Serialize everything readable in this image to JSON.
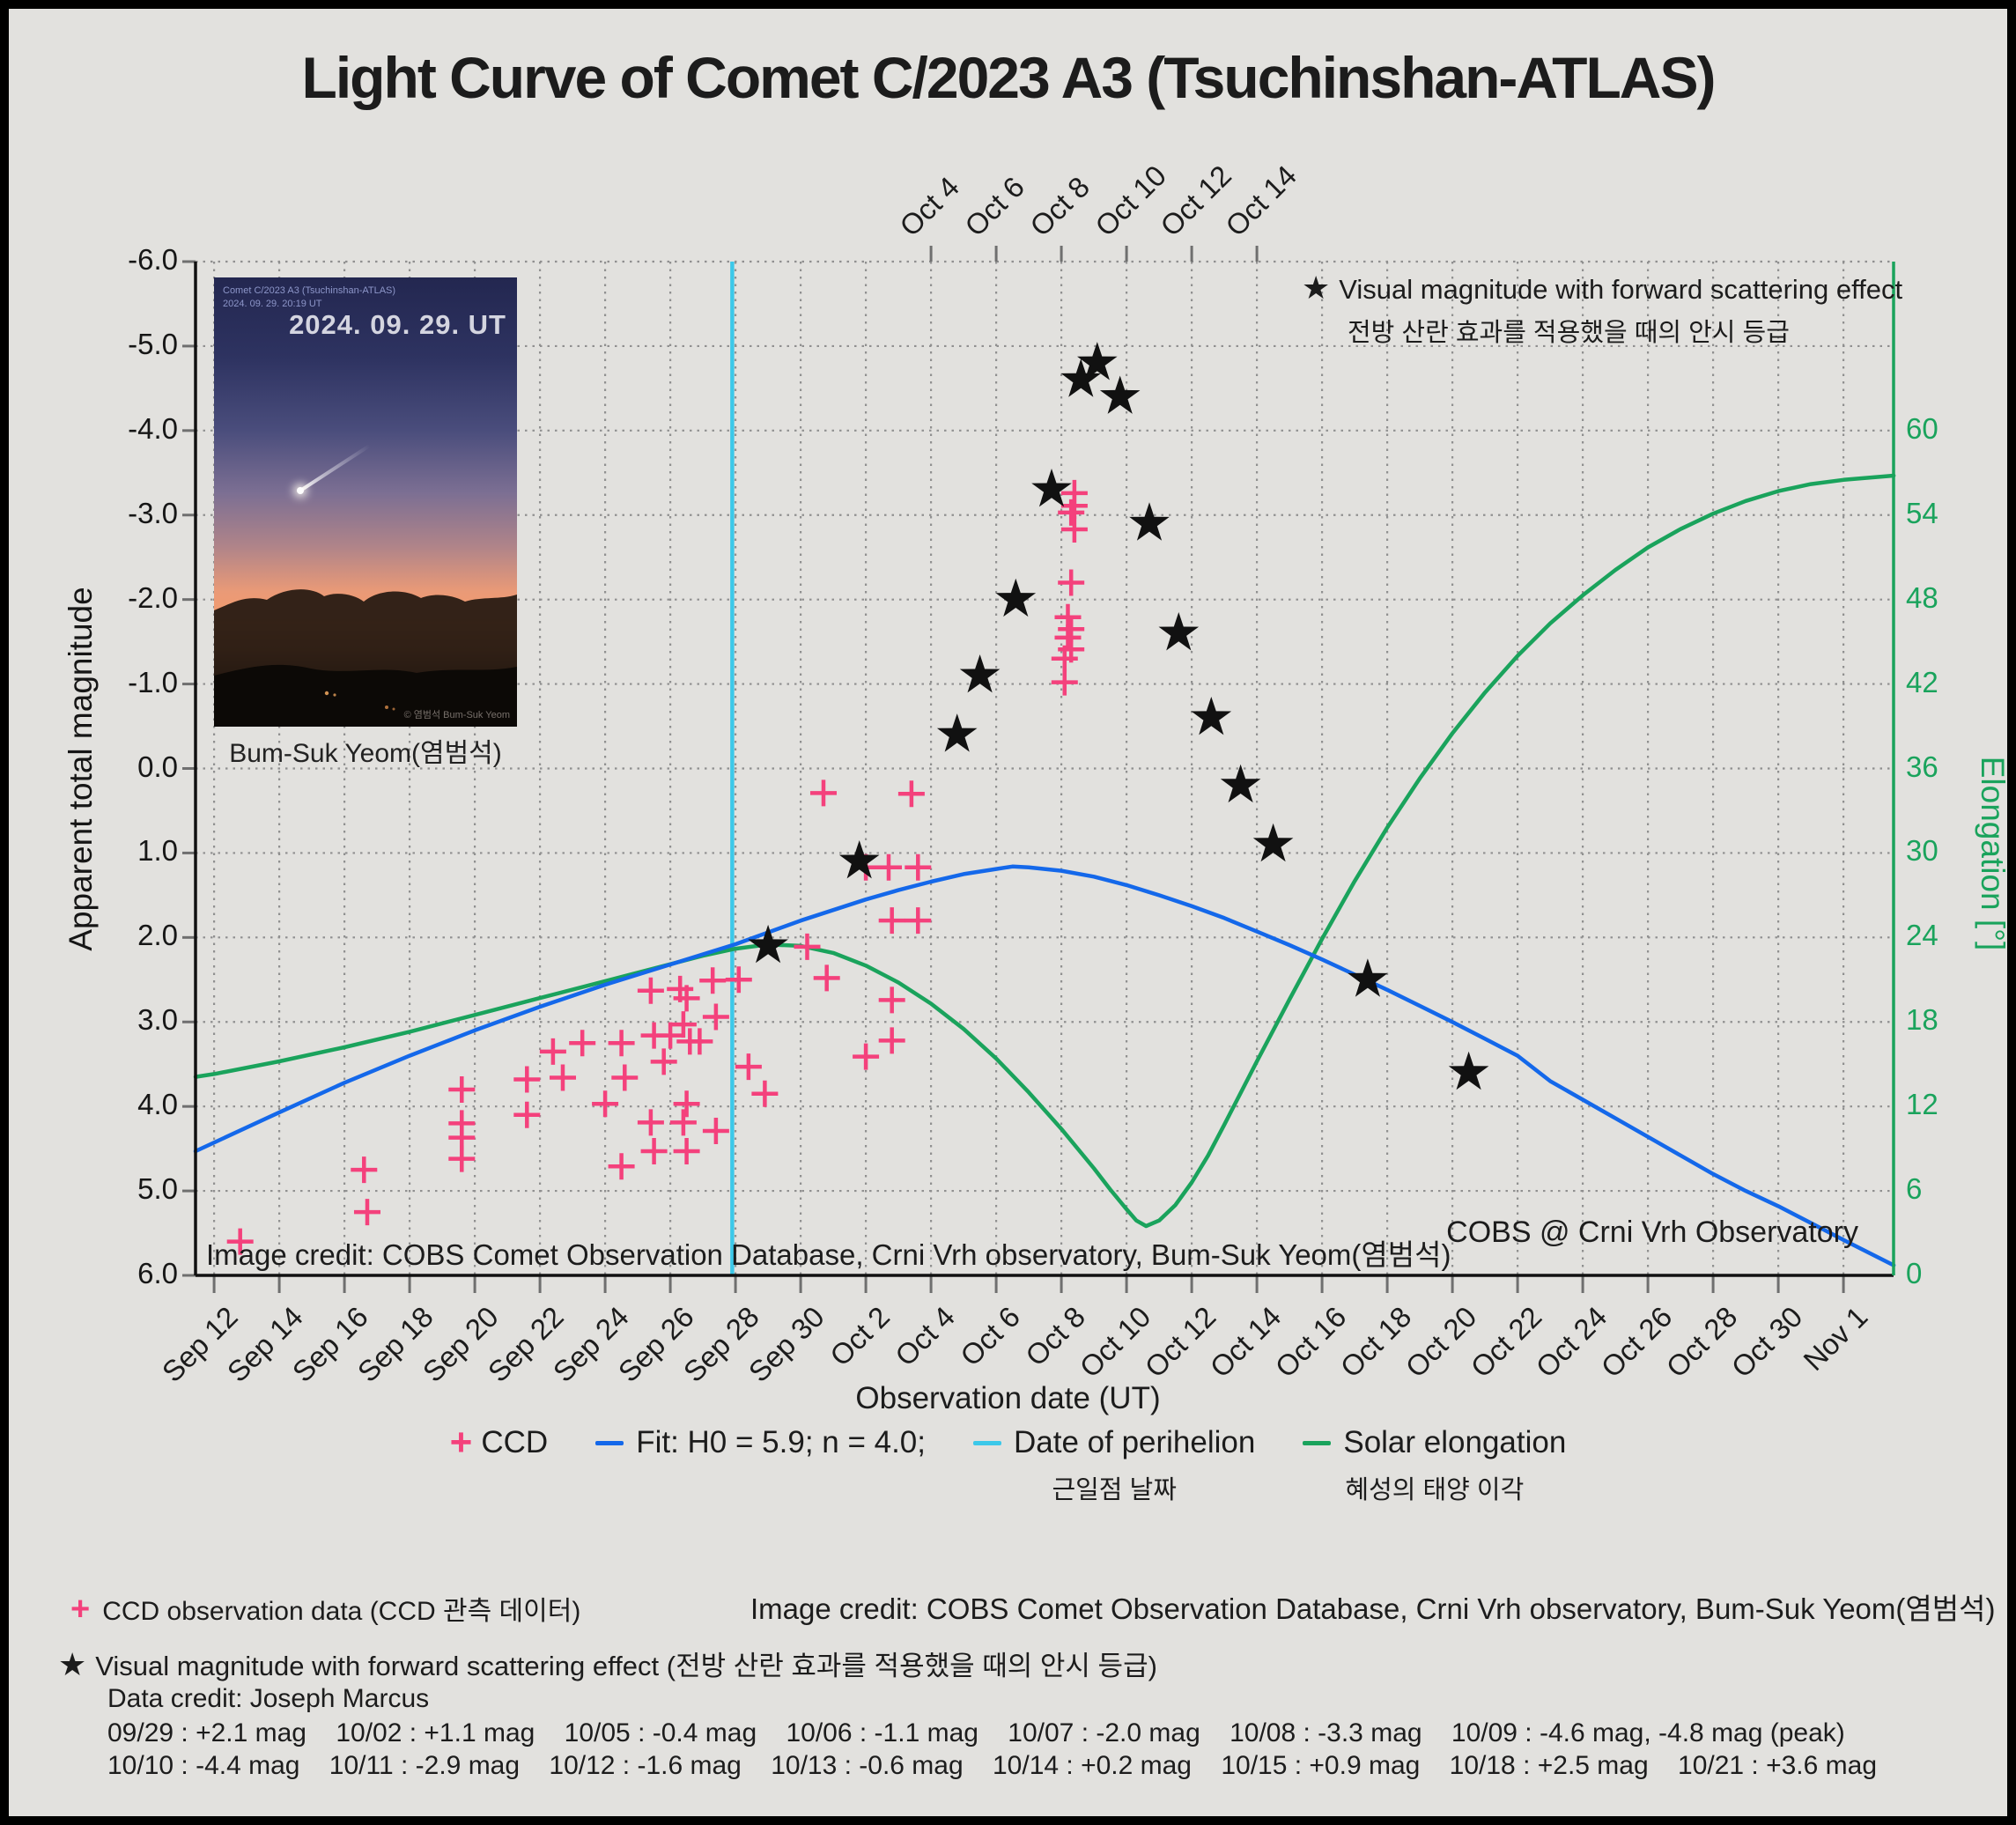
{
  "title": "Light Curve of Comet C/2023 A3 (Tsuchinshan-ATLAS)",
  "colors": {
    "background": "#e2e1de",
    "ccd_pink": "#F4417C",
    "fit_blue": "#1468EA",
    "perihelion_cyan": "#3CC8E9",
    "elongation_green": "#1AA35C",
    "grid_gray": "#909090",
    "star_black": "#111111"
  },
  "inset": {
    "photo_label_line1": "Comet C/2023 A3 (Tsuchinshan-ATLAS)",
    "photo_label_line2": "2024. 09. 29. 20:19 UT",
    "photo_big_date": "2024. 09. 29. UT",
    "photo_watermark": "© 염범석 Bum-Suk Yeom",
    "caption": "Bum-Suk Yeom(염범석)"
  },
  "plot": {
    "star_legend_line1": "Visual magnitude with forward scattering effect",
    "star_legend_line2": "전방 산란 효과를 적용했을 때의 안시 등급",
    "credit_left": "Image credit: COBS Comet Observation Database, Crni Vrh observatory, Bum-Suk Yeom(염범석)",
    "credit_right": "COBS @ Crni Vrh Observatory"
  },
  "legend": {
    "ccd": "CCD",
    "fit": "Fit: H0 = 5.9; n = 4.0;",
    "perihelion": "Date of perihelion",
    "perihelion_kr": "근일점 날짜",
    "elongation": "Solar elongation",
    "elongation_kr": "혜성의 태양 이각"
  },
  "footer": {
    "ccd_line": "CCD observation data (CCD 관측 데이터)",
    "image_credit": "Image credit: COBS Comet Observation Database, Crni Vrh observatory, Bum-Suk Yeom(염범석)",
    "star_line": "Visual magnitude with forward scattering effect (전방 산란 효과를 적용했을 때의 안시 등급)",
    "data_credit": "Data credit: Joseph Marcus",
    "mag_line1": "09/29 : +2.1 mag    10/02 : +1.1 mag    10/05 : -0.4 mag    10/06 : -1.1 mag    10/07 : -2.0 mag    10/08 : -3.3 mag    10/09 : -4.6 mag, -4.8 mag (peak)",
    "mag_line2": "10/10 : -4.4 mag    10/11 : -2.9 mag    10/12 : -1.6 mag    10/13 : -0.6 mag    10/14 : +0.2 mag    10/15 : +0.9 mag    10/18 : +2.5 mag    10/21 : +3.6 mag"
  },
  "chart_data": {
    "type": "scatter",
    "title": "Light Curve of Comet C/2023 A3 (Tsuchinshan-ATLAS)",
    "x_axis": {
      "label": "Observation date (UT)",
      "unit": "days since Sep 12, 2024 UT",
      "domain_days": [
        -0.57,
        51.54
      ],
      "tick_days": [
        0,
        2,
        4,
        6,
        8,
        10,
        12,
        14,
        16,
        18,
        20,
        22,
        24,
        26,
        28,
        30,
        32,
        34,
        36,
        38,
        40,
        42,
        44,
        46,
        48,
        50
      ],
      "tick_labels": [
        "Sep 12",
        "Sep 14",
        "Sep 16",
        "Sep 18",
        "Sep 20",
        "Sep 22",
        "Sep 24",
        "Sep 26",
        "Sep 28",
        "Sep 30",
        "Oct 2",
        "Oct 4",
        "Oct 6",
        "Oct 8",
        "Oct 10",
        "Oct 12",
        "Oct 14",
        "Oct 16",
        "Oct 18",
        "Oct 20",
        "Oct 22",
        "Oct 24",
        "Oct 26",
        "Oct 28",
        "Oct 30",
        "Nov 1"
      ],
      "top_tick_days": [
        22,
        24,
        26,
        28,
        30,
        32
      ],
      "top_tick_labels": [
        "Oct 4",
        "Oct 6",
        "Oct 8",
        "Oct 10",
        "Oct 12",
        "Oct 14"
      ]
    },
    "y_axis_left": {
      "label": "Apparent total magnitude",
      "range": [
        -6.0,
        6.0
      ],
      "inverted": true,
      "tick_values": [
        -6,
        -5,
        -4,
        -3,
        -2,
        -1,
        0,
        1,
        2,
        3,
        4,
        5,
        6
      ],
      "tick_labels": [
        "-6.0",
        "-5.0",
        "-4.0",
        "-3.0",
        "-2.0",
        "-1.0",
        "0.0",
        "1.0",
        "2.0",
        "3.0",
        "4.0",
        "5.0",
        "6.0"
      ]
    },
    "y_axis_right": {
      "label": "Elongation [°]",
      "tick_values": [
        60,
        54,
        48,
        42,
        36,
        30,
        24,
        18,
        12,
        6,
        0
      ],
      "tick_labels": [
        "60",
        "54",
        "48",
        "42",
        "36",
        "30",
        "24",
        "18",
        "12",
        "6",
        "0"
      ]
    },
    "perihelion_day": 15.9,
    "grid": true,
    "series": {
      "ccd": {
        "name": "CCD",
        "marker": "+",
        "points_day_mag": [
          [
            0.8,
            5.6
          ],
          [
            4.6,
            4.75
          ],
          [
            4.7,
            5.25
          ],
          [
            7.6,
            3.8
          ],
          [
            7.6,
            4.2
          ],
          [
            7.6,
            4.37
          ],
          [
            7.6,
            4.62
          ],
          [
            9.6,
            3.68
          ],
          [
            9.6,
            4.1
          ],
          [
            10.4,
            3.35
          ],
          [
            10.7,
            3.66
          ],
          [
            11.3,
            3.25
          ],
          [
            12.0,
            3.97
          ],
          [
            12.5,
            3.25
          ],
          [
            12.6,
            3.66
          ],
          [
            12.5,
            4.71
          ],
          [
            13.4,
            2.63
          ],
          [
            13.4,
            4.19
          ],
          [
            13.5,
            4.53
          ],
          [
            13.5,
            3.16
          ],
          [
            13.8,
            3.47
          ],
          [
            14.0,
            3.16
          ],
          [
            14.3,
            2.61
          ],
          [
            14.5,
            2.72
          ],
          [
            14.4,
            3.03
          ],
          [
            14.6,
            3.23
          ],
          [
            14.5,
            3.97
          ],
          [
            14.4,
            4.19
          ],
          [
            14.5,
            4.53
          ],
          [
            14.9,
            3.23
          ],
          [
            15.3,
            2.51
          ],
          [
            15.4,
            2.94
          ],
          [
            15.4,
            4.29
          ],
          [
            16.1,
            2.5
          ],
          [
            16.4,
            3.53
          ],
          [
            16.9,
            3.85
          ],
          [
            18.2,
            2.11
          ],
          [
            18.7,
            0.29
          ],
          [
            18.8,
            2.48
          ],
          [
            20.0,
            1.17
          ],
          [
            20.0,
            3.41
          ],
          [
            20.7,
            1.17
          ],
          [
            20.8,
            1.8
          ],
          [
            20.8,
            2.74
          ],
          [
            20.8,
            3.22
          ],
          [
            21.4,
            0.3
          ],
          [
            21.6,
            1.17
          ],
          [
            21.6,
            1.8
          ],
          [
            26.4,
            -3.26
          ],
          [
            26.4,
            -3.11
          ],
          [
            26.3,
            -3.03
          ],
          [
            26.4,
            -2.83
          ],
          [
            26.3,
            -2.2
          ],
          [
            26.2,
            -1.79
          ],
          [
            26.3,
            -1.65
          ],
          [
            26.2,
            -1.55
          ],
          [
            26.3,
            -1.41
          ],
          [
            26.1,
            -1.3
          ],
          [
            26.1,
            -1.02
          ]
        ]
      },
      "visual_stars": {
        "name": "Visual magnitude with forward scattering effect",
        "marker": "star",
        "points_day_mag": [
          [
            17.0,
            2.1
          ],
          [
            19.8,
            1.1
          ],
          [
            22.8,
            -0.4
          ],
          [
            23.5,
            -1.1
          ],
          [
            24.6,
            -2.0
          ],
          [
            25.7,
            -3.3
          ],
          [
            26.6,
            -4.6
          ],
          [
            27.1,
            -4.8
          ],
          [
            27.8,
            -4.4
          ],
          [
            28.7,
            -2.9
          ],
          [
            29.6,
            -1.6
          ],
          [
            30.6,
            -0.6
          ],
          [
            31.5,
            0.2
          ],
          [
            32.5,
            0.9
          ],
          [
            35.4,
            2.5
          ],
          [
            38.5,
            3.6
          ]
        ],
        "point_labels": [
          "09/29 +2.1",
          "10/02 +1.1",
          "10/05 -0.4",
          "10/06 -1.1",
          "10/07 -2.0",
          "10/08 -3.3",
          "10/09 -4.6",
          "10/09 -4.8 (peak)",
          "10/10 -4.4",
          "10/11 -2.9",
          "10/12 -1.6",
          "10/13 -0.6",
          "10/14 +0.2",
          "10/15 +0.9",
          "10/18 +2.5",
          "10/21 +3.6"
        ]
      },
      "fit": {
        "name": "Fit: H0 = 5.9; n = 4.0;",
        "points_day_mag": [
          [
            -0.57,
            4.53
          ],
          [
            2,
            4.07
          ],
          [
            4,
            3.72
          ],
          [
            6,
            3.4
          ],
          [
            8,
            3.1
          ],
          [
            10,
            2.82
          ],
          [
            12,
            2.56
          ],
          [
            14,
            2.32
          ],
          [
            16,
            2.08
          ],
          [
            18,
            1.8
          ],
          [
            20,
            1.55
          ],
          [
            21,
            1.44
          ],
          [
            22,
            1.34
          ],
          [
            23,
            1.25
          ],
          [
            24,
            1.19
          ],
          [
            24.5,
            1.16
          ],
          [
            25,
            1.17
          ],
          [
            26,
            1.21
          ],
          [
            27,
            1.28
          ],
          [
            28,
            1.38
          ],
          [
            29,
            1.5
          ],
          [
            30,
            1.63
          ],
          [
            31,
            1.77
          ],
          [
            32,
            1.93
          ],
          [
            33,
            2.09
          ],
          [
            34,
            2.26
          ],
          [
            35,
            2.44
          ],
          [
            36,
            2.62
          ],
          [
            37,
            2.81
          ],
          [
            38,
            3.0
          ],
          [
            39,
            3.2
          ],
          [
            40,
            3.4
          ],
          [
            41,
            3.7
          ],
          [
            42,
            3.92
          ],
          [
            43,
            4.14
          ],
          [
            44,
            4.36
          ],
          [
            45,
            4.58
          ],
          [
            46,
            4.8
          ],
          [
            47,
            5.0
          ],
          [
            48,
            5.18
          ],
          [
            49,
            5.38
          ],
          [
            50,
            5.58
          ],
          [
            51.54,
            5.88
          ]
        ]
      },
      "elongation": {
        "name": "Solar elongation",
        "points_day_deg": [
          [
            -0.57,
            14.1
          ],
          [
            0,
            14.3
          ],
          [
            2,
            15.2
          ],
          [
            4,
            16.2
          ],
          [
            6,
            17.3
          ],
          [
            8,
            18.5
          ],
          [
            10,
            19.7
          ],
          [
            12,
            20.9
          ],
          [
            14,
            22.1
          ],
          [
            15,
            22.7
          ],
          [
            16,
            23.2
          ],
          [
            17,
            23.5
          ],
          [
            18,
            23.4
          ],
          [
            19,
            22.9
          ],
          [
            20,
            22.0
          ],
          [
            21,
            20.8
          ],
          [
            22,
            19.3
          ],
          [
            23,
            17.5
          ],
          [
            24,
            15.4
          ],
          [
            25,
            13.0
          ],
          [
            26,
            10.4
          ],
          [
            27,
            7.6
          ],
          [
            27.5,
            6.1
          ],
          [
            28,
            4.7
          ],
          [
            28.3,
            3.9
          ],
          [
            28.6,
            3.5
          ],
          [
            29,
            3.9
          ],
          [
            29.5,
            5.0
          ],
          [
            30,
            6.6
          ],
          [
            30.5,
            8.5
          ],
          [
            31,
            10.7
          ],
          [
            32,
            15.2
          ],
          [
            33,
            19.6
          ],
          [
            34,
            23.9
          ],
          [
            35,
            28.0
          ],
          [
            36,
            31.8
          ],
          [
            37,
            35.3
          ],
          [
            38,
            38.5
          ],
          [
            39,
            41.4
          ],
          [
            40,
            44.0
          ],
          [
            41,
            46.3
          ],
          [
            42,
            48.3
          ],
          [
            43,
            50.1
          ],
          [
            44,
            51.7
          ],
          [
            45,
            53.0
          ],
          [
            46,
            54.1
          ],
          [
            47,
            55.0
          ],
          [
            48,
            55.7
          ],
          [
            49,
            56.2
          ],
          [
            50,
            56.5
          ],
          [
            51.54,
            56.8
          ]
        ]
      }
    }
  }
}
